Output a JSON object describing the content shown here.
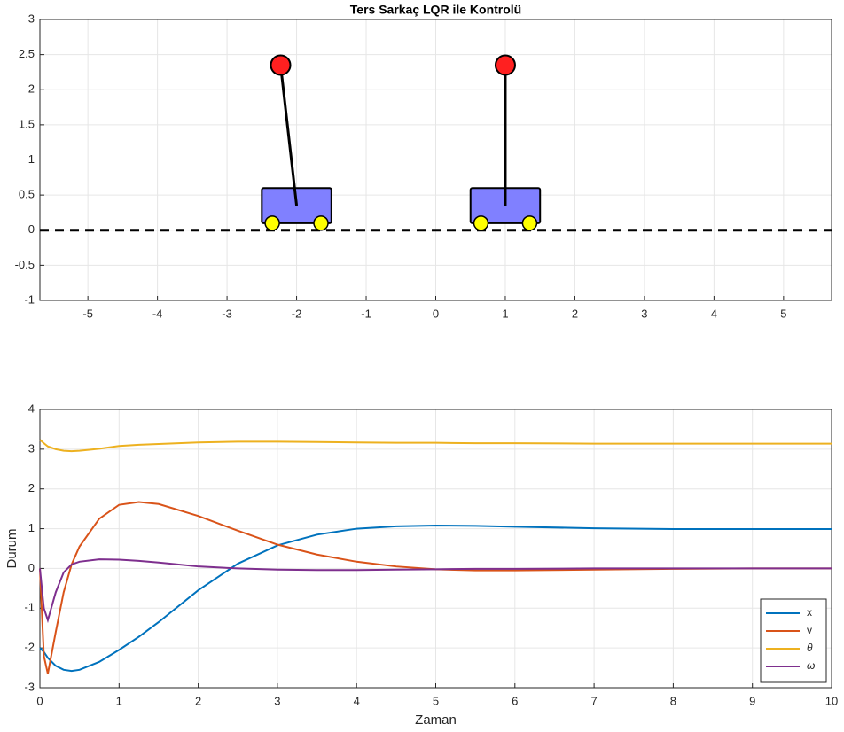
{
  "chart_data": [
    {
      "type": "cart-pendulum",
      "title": "Ters Sarkaç LQR ile Kontrolü",
      "xlim": [
        -5.69,
        5.69
      ],
      "ylim": [
        -1,
        3
      ],
      "xticks": [
        -5,
        -4,
        -3,
        -2,
        -1,
        0,
        1,
        2,
        3,
        4,
        5
      ],
      "yticks": [
        -1,
        -0.5,
        0,
        0.5,
        1,
        1.5,
        2,
        2.5,
        3
      ],
      "grid": true,
      "carts": [
        {
          "x": -2,
          "bob_x": -2.23,
          "bob_y": 2.35
        },
        {
          "x": 1,
          "bob_x": 1,
          "bob_y": 2.35
        }
      ],
      "cart_color": "#8080ff",
      "wheel_color": "#ffff00",
      "bob_color": "#ff2020"
    },
    {
      "type": "line",
      "xlabel": "Zaman",
      "ylabel": "Durum",
      "xlim": [
        0,
        10
      ],
      "ylim": [
        -3,
        4
      ],
      "xticks": [
        0,
        1,
        2,
        3,
        4,
        5,
        6,
        7,
        8,
        9,
        10
      ],
      "yticks": [
        -3,
        -2,
        -1,
        0,
        1,
        2,
        3,
        4
      ],
      "grid": true,
      "legend": "lower-right",
      "x": [
        0,
        0.05,
        0.1,
        0.2,
        0.3,
        0.4,
        0.5,
        0.75,
        1,
        1.25,
        1.5,
        2,
        2.5,
        3,
        3.5,
        4,
        4.5,
        5,
        5.5,
        6,
        7,
        8,
        9,
        10
      ],
      "series": [
        {
          "name": "x",
          "color": "#0072bd",
          "values": [
            -2,
            -2.1,
            -2.25,
            -2.45,
            -2.55,
            -2.58,
            -2.55,
            -2.35,
            -2.05,
            -1.72,
            -1.35,
            -0.55,
            0.12,
            0.58,
            0.85,
            1.0,
            1.06,
            1.08,
            1.07,
            1.05,
            1.01,
            0.99,
            0.99,
            0.99
          ]
        },
        {
          "name": "v",
          "color": "#d95319",
          "values": [
            0,
            -2.2,
            -2.65,
            -1.6,
            -0.6,
            0.1,
            0.55,
            1.25,
            1.6,
            1.67,
            1.62,
            1.32,
            0.95,
            0.6,
            0.35,
            0.17,
            0.05,
            -0.02,
            -0.05,
            -0.05,
            -0.03,
            -0.01,
            0,
            0
          ]
        },
        {
          "name": "θ",
          "color": "#edb120",
          "values": [
            3.24,
            3.15,
            3.07,
            3.0,
            2.96,
            2.95,
            2.96,
            3.01,
            3.08,
            3.11,
            3.13,
            3.17,
            3.19,
            3.19,
            3.18,
            3.17,
            3.16,
            3.16,
            3.15,
            3.15,
            3.14,
            3.14,
            3.14,
            3.14
          ]
        },
        {
          "name": "ω",
          "color": "#7e2f8e",
          "values": [
            0,
            -1.0,
            -1.3,
            -0.6,
            -0.1,
            0.1,
            0.17,
            0.23,
            0.22,
            0.19,
            0.15,
            0.05,
            0,
            -0.03,
            -0.04,
            -0.04,
            -0.03,
            -0.02,
            -0.01,
            -0.01,
            0,
            0,
            0,
            0
          ]
        }
      ]
    }
  ]
}
